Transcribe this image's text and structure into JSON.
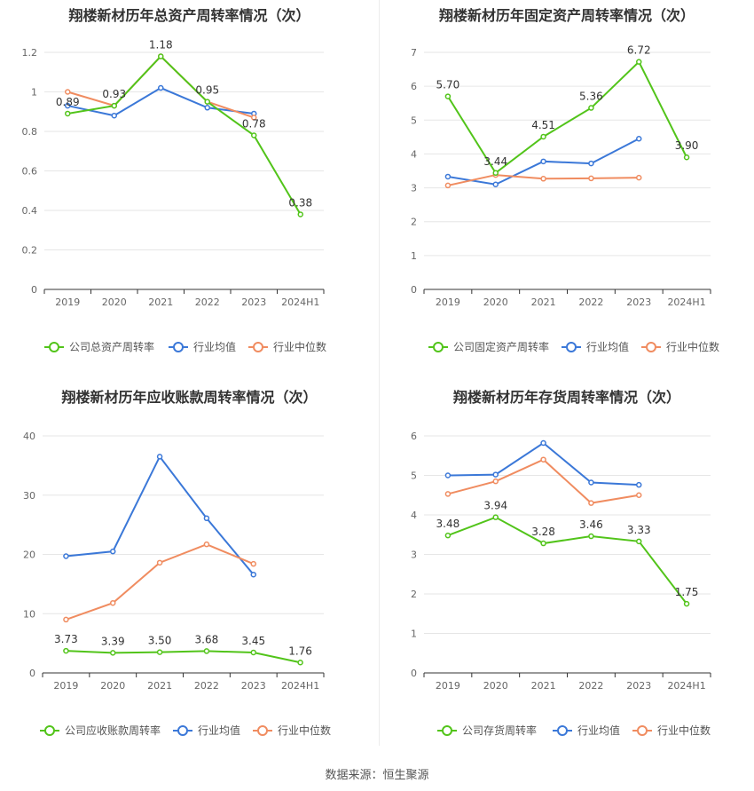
{
  "colors": {
    "company": "#52c41a",
    "avg": "#3b78d8",
    "median": "#f08c60"
  },
  "footer": {
    "source": "数据来源：恒生聚源"
  },
  "chart_data": [
    {
      "type": "line",
      "title": "翔楼新材历年总资产周转率情况（次）",
      "categories": [
        "2019",
        "2020",
        "2021",
        "2022",
        "2023",
        "2024H1"
      ],
      "ylim": [
        0,
        1.2
      ],
      "yticks": [
        "0",
        "0.2",
        "0.4",
        "0.6",
        "0.8",
        "1",
        "1.2"
      ],
      "series": [
        {
          "name": "公司总资产周转率",
          "role": "company",
          "values": [
            0.89,
            0.93,
            1.18,
            0.95,
            0.78,
            0.38
          ],
          "labels": [
            "0.89",
            "0.93",
            "1.18",
            "0.95",
            "0.78",
            "0.38"
          ]
        },
        {
          "name": "行业均值",
          "role": "avg",
          "values": [
            0.93,
            0.88,
            1.02,
            0.92,
            0.89,
            null
          ]
        },
        {
          "name": "行业中位数",
          "role": "median",
          "values": [
            1.0,
            0.93,
            1.18,
            0.95,
            0.87,
            null
          ]
        }
      ]
    },
    {
      "type": "line",
      "title": "翔楼新材历年固定资产周转率情况（次）",
      "categories": [
        "2019",
        "2020",
        "2021",
        "2022",
        "2023",
        "2024H1"
      ],
      "ylim": [
        0,
        7
      ],
      "yticks": [
        "0",
        "1",
        "2",
        "3",
        "4",
        "5",
        "6",
        "7"
      ],
      "series": [
        {
          "name": "公司固定资产周转率",
          "role": "company",
          "values": [
            5.7,
            3.44,
            4.51,
            5.36,
            6.72,
            3.9
          ],
          "labels": [
            "5.70",
            "3.44",
            "4.51",
            "5.36",
            "6.72",
            "3.90"
          ]
        },
        {
          "name": "行业均值",
          "role": "avg",
          "values": [
            3.33,
            3.1,
            3.78,
            3.72,
            4.45,
            null
          ]
        },
        {
          "name": "行业中位数",
          "role": "median",
          "values": [
            3.07,
            3.38,
            3.27,
            3.28,
            3.3,
            null
          ]
        }
      ]
    },
    {
      "type": "line",
      "title": "翔楼新材历年应收账款周转率情况（次）",
      "categories": [
        "2019",
        "2020",
        "2021",
        "2022",
        "2023",
        "2024H1"
      ],
      "ylim": [
        0,
        40
      ],
      "yticks": [
        "0",
        "10",
        "20",
        "30",
        "40"
      ],
      "series": [
        {
          "name": "公司应收账款周转率",
          "role": "company",
          "values": [
            3.73,
            3.39,
            3.5,
            3.68,
            3.45,
            1.76
          ],
          "labels": [
            "3.73",
            "3.39",
            "3.50",
            "3.68",
            "3.45",
            "1.76"
          ]
        },
        {
          "name": "行业均值",
          "role": "avg",
          "values": [
            19.7,
            20.5,
            36.5,
            26.1,
            16.6,
            null
          ]
        },
        {
          "name": "行业中位数",
          "role": "median",
          "values": [
            9.0,
            11.8,
            18.6,
            21.7,
            18.4,
            null
          ]
        }
      ]
    },
    {
      "type": "line",
      "title": "翔楼新材历年存货周转率情况（次）",
      "categories": [
        "2019",
        "2020",
        "2021",
        "2022",
        "2023",
        "2024H1"
      ],
      "ylim": [
        0,
        6
      ],
      "yticks": [
        "0",
        "1",
        "2",
        "3",
        "4",
        "5",
        "6"
      ],
      "series": [
        {
          "name": "公司存货周转率",
          "role": "company",
          "values": [
            3.48,
            3.94,
            3.28,
            3.46,
            3.33,
            1.75
          ],
          "labels": [
            "3.48",
            "3.94",
            "3.28",
            "3.46",
            "3.33",
            "1.75"
          ]
        },
        {
          "name": "行业均值",
          "role": "avg",
          "values": [
            5.0,
            5.02,
            5.82,
            4.82,
            4.76,
            null
          ]
        },
        {
          "name": "行业中位数",
          "role": "median",
          "values": [
            4.53,
            4.85,
            5.4,
            4.3,
            4.5,
            null
          ]
        }
      ]
    }
  ]
}
